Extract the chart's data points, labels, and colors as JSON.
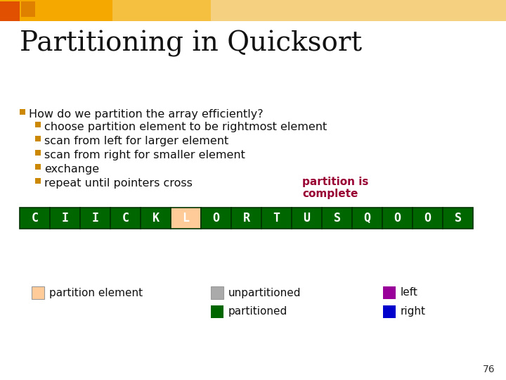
{
  "title": "Partitioning in Quicksort",
  "title_fontsize": 28,
  "title_font": "serif",
  "bg_color": "#ffffff",
  "bullet_header": "How do we partition the array efficiently?",
  "bullets": [
    "choose partition element to be rightmost element",
    "scan from left for larger element",
    "scan from right for smaller element",
    "exchange",
    "repeat until pointers cross"
  ],
  "bullet_marker_color": "#cc8800",
  "bullet_fontsize": 11.5,
  "annotation_text": "partition is\ncomplete",
  "annotation_color": "#990033",
  "annotation_fontsize": 11,
  "array_letters": [
    "C",
    "I",
    "I",
    "C",
    "K",
    "L",
    "O",
    "R",
    "T",
    "U",
    "S",
    "Q",
    "O",
    "O",
    "S"
  ],
  "array_colors": [
    "#006600",
    "#006600",
    "#006600",
    "#006600",
    "#006600",
    "#FFCC99",
    "#006600",
    "#006600",
    "#006600",
    "#006600",
    "#006600",
    "#006600",
    "#006600",
    "#006600",
    "#006600"
  ],
  "array_text_color": "#ffffff",
  "array_border_color": "#003300",
  "array_fontsize": 12,
  "legend_items": [
    {
      "label": "partition element",
      "color": "#FFCC99"
    },
    {
      "label": "unpartitioned",
      "color": "#aaaaaa"
    },
    {
      "label": "partitioned",
      "color": "#006600"
    },
    {
      "label": "left",
      "color": "#990099"
    },
    {
      "label": "right",
      "color": "#0000cc"
    }
  ],
  "legend_fontsize": 11,
  "slide_number": "76",
  "slide_number_fontsize": 10
}
